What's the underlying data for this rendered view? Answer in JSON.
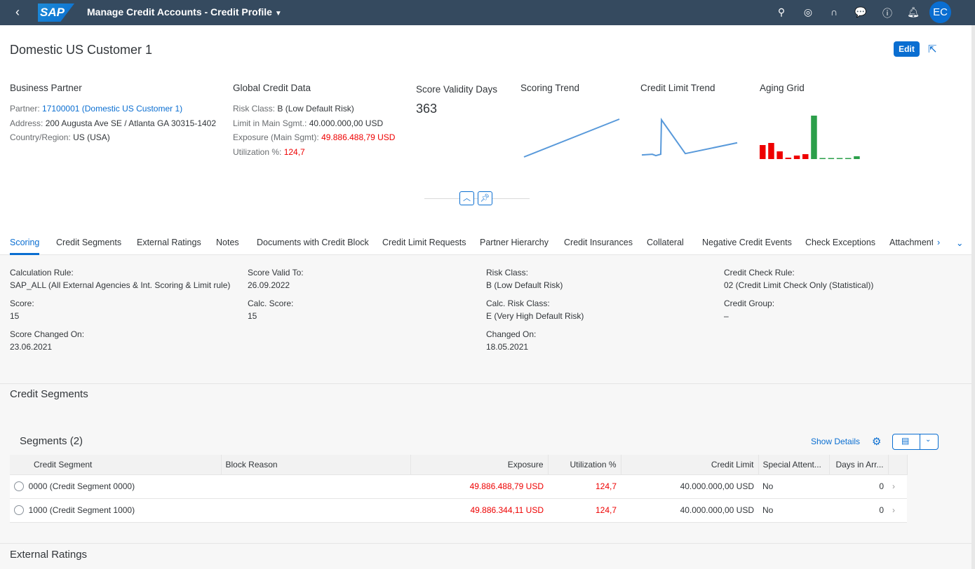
{
  "shell": {
    "title": "Manage Credit Accounts - Credit Profile",
    "avatar": "EC",
    "icons": [
      "search-icon",
      "copilot-icon",
      "headset-icon",
      "feedback-icon",
      "help-icon",
      "bell-icon"
    ]
  },
  "header": {
    "title": "Domestic US Customer 1",
    "edit": "Edit",
    "business_partner": {
      "heading": "Business Partner",
      "partner_label": "Partner:",
      "partner_value": "17100001 (Domestic US Customer 1)",
      "address_label": "Address:",
      "address_value": "200 Augusta Ave SE / Atlanta GA 30315-1402",
      "country_label": "Country/Region:",
      "country_value": "US (USA)"
    },
    "global_credit": {
      "heading": "Global Credit Data",
      "risk_label": "Risk Class:",
      "risk_value": "B (Low Default Risk)",
      "limit_label": "Limit in Main Sgmt.:",
      "limit_value": "40.000.000,00  USD",
      "exposure_label": "Exposure (Main Sgmt):",
      "exposure_value": "49.886.488,79  USD",
      "util_label": "Utilization %:",
      "util_value": "124,7"
    },
    "score_validity": {
      "heading": "Score Validity Days",
      "value": "363"
    },
    "scoring_trend": {
      "heading": "Scoring Trend",
      "points": [
        0,
        1
      ]
    },
    "credit_limit_trend": {
      "heading": "Credit Limit Trend",
      "points": [
        3,
        4,
        2,
        4,
        55,
        5,
        21
      ]
    },
    "aging_grid": {
      "heading": "Aging Grid",
      "bars": [
        {
          "v": 20,
          "c": "#e00"
        },
        {
          "v": 23,
          "c": "#e00"
        },
        {
          "v": 11,
          "c": "#e00"
        },
        {
          "v": 2,
          "c": "#e00"
        },
        {
          "v": 5,
          "c": "#e00"
        },
        {
          "v": 7,
          "c": "#e00"
        },
        {
          "v": 62,
          "c": "#2b9f4a"
        },
        {
          "v": 1.5,
          "c": "#2b9f4a"
        },
        {
          "v": 1.5,
          "c": "#2b9f4a"
        },
        {
          "v": 1.5,
          "c": "#2b9f4a"
        },
        {
          "v": 1.5,
          "c": "#2b9f4a"
        },
        {
          "v": 4,
          "c": "#2b9f4a"
        }
      ]
    }
  },
  "tabs": [
    "Scoring",
    "Credit Segments",
    "External Ratings",
    "Notes",
    "Documents with Credit Block",
    "Credit Limit Requests",
    "Partner Hierarchy",
    "Credit Insurances",
    "Collateral",
    "Negative Credit Events",
    "Check Exceptions",
    "Attachment"
  ],
  "scoring": [
    [
      {
        "l": "Calculation Rule:",
        "v": "SAP_ALL (All External Agencies & Int. Scoring & Limit rule)"
      },
      {
        "l": "Score:",
        "v": "15"
      },
      {
        "l": "Score Changed On:",
        "v": "23.06.2021"
      }
    ],
    [
      {
        "l": "Score Valid To:",
        "v": "26.09.2022"
      },
      {
        "l": "Calc. Score:",
        "v": "15"
      }
    ],
    [
      {
        "l": "Risk Class:",
        "v": "B (Low Default Risk)"
      },
      {
        "l": "Calc. Risk Class:",
        "v": "E (Very High Default Risk)"
      },
      {
        "l": "Changed On:",
        "v": "18.05.2021"
      }
    ],
    [
      {
        "l": "Credit Check Rule:",
        "v": "02 (Credit Limit Check Only (Statistical))"
      },
      {
        "l": "Credit Group:",
        "v": "–"
      }
    ]
  ],
  "segments": {
    "section_title": "Credit Segments",
    "table_title": "Segments (2)",
    "show_details": "Show Details",
    "columns": [
      "Credit Segment",
      "Block Reason",
      "Exposure",
      "Utilization %",
      "Credit Limit",
      "Special Attent...",
      "Days in Arr..."
    ],
    "rows": [
      [
        "0000 (Credit Segment 0000)",
        "",
        "49.886.488,79  USD",
        "124,7",
        "40.000.000,00  USD",
        "No",
        "0"
      ],
      [
        "1000 (Credit Segment 1000)",
        "",
        "49.886.344,11  USD",
        "124,7",
        "40.000.000,00  USD",
        "No",
        "0"
      ]
    ]
  },
  "external_ratings": {
    "section_title": "External Ratings"
  }
}
